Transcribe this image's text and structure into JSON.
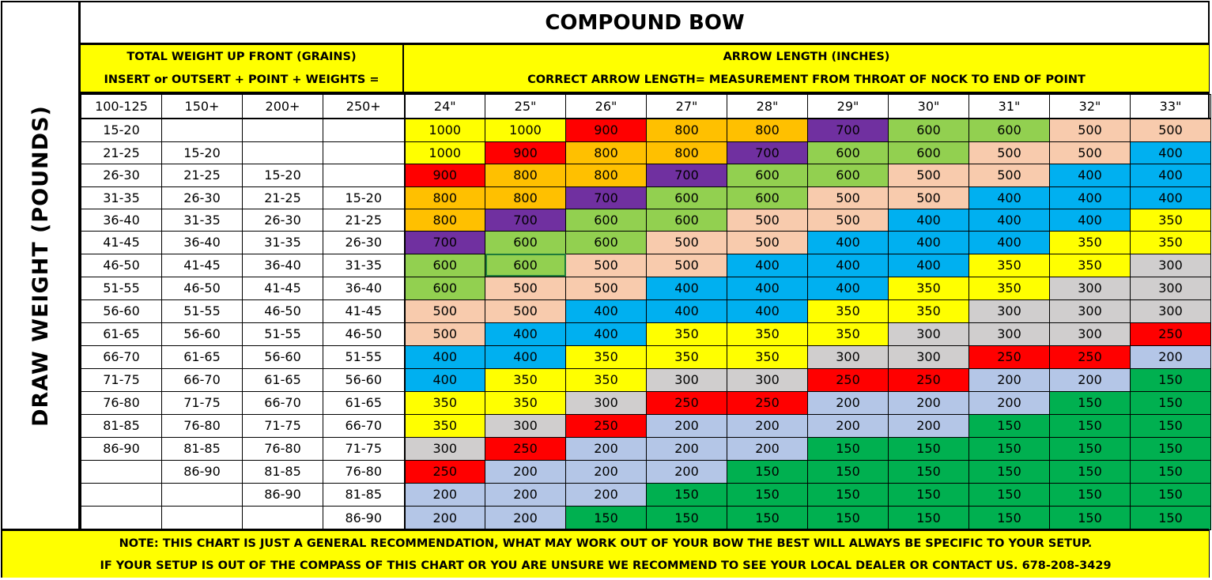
{
  "title": "COMPOUND BOW",
  "side_label": "DRAW WEIGHT (POUNDS)",
  "left_header": {
    "line1": "TOTAL WEIGHT UP FRONT (GRAINS)",
    "line2": "INSERT or OUTSERT + POINT + WEIGHTS ="
  },
  "right_header": {
    "line1": "ARROW LENGTH (INCHES)",
    "line2": "CORRECT ARROW LENGTH= MEASUREMENT FROM THROAT OF NOCK TO END OF POINT"
  },
  "weight_columns": [
    "100-125",
    "150+",
    "200+",
    "250+"
  ],
  "length_columns": [
    "24\"",
    "25\"",
    "26\"",
    "27\"",
    "28\"",
    "29\"",
    "30\"",
    "31\"",
    "32\"",
    "33\""
  ],
  "colors": {
    "1000": "#ffff00",
    "900": "#ff0000",
    "800": "#ffc000",
    "700": "#7030a0",
    "600": "#92d050",
    "500": "#f8cbad",
    "400": "#00b0f0",
    "350": "#ffff00",
    "300": "#d0cece",
    "250": "#ff0000",
    "200": "#b4c6e7",
    "150": "#00b050"
  },
  "rows": [
    {
      "weights": [
        "15-20",
        "",
        "",
        ""
      ],
      "values": [
        "1000",
        "1000",
        "900",
        "800",
        "800",
        "700",
        "600",
        "600",
        "500",
        "500"
      ]
    },
    {
      "weights": [
        "21-25",
        "15-20",
        "",
        ""
      ],
      "values": [
        "1000",
        "900",
        "800",
        "800",
        "700",
        "600",
        "600",
        "500",
        "500",
        "400"
      ]
    },
    {
      "weights": [
        "26-30",
        "21-25",
        "15-20",
        ""
      ],
      "values": [
        "900",
        "800",
        "800",
        "700",
        "600",
        "600",
        "500",
        "500",
        "400",
        "400"
      ]
    },
    {
      "weights": [
        "31-35",
        "26-30",
        "21-25",
        "15-20"
      ],
      "values": [
        "800",
        "800",
        "700",
        "600",
        "600",
        "500",
        "500",
        "400",
        "400",
        "400"
      ]
    },
    {
      "weights": [
        "36-40",
        "31-35",
        "26-30",
        "21-25"
      ],
      "values": [
        "800",
        "700",
        "600",
        "600",
        "500",
        "500",
        "400",
        "400",
        "400",
        "350"
      ]
    },
    {
      "weights": [
        "41-45",
        "36-40",
        "31-35",
        "26-30"
      ],
      "values": [
        "700",
        "600",
        "600",
        "500",
        "500",
        "400",
        "400",
        "400",
        "350",
        "350"
      ]
    },
    {
      "weights": [
        "46-50",
        "41-45",
        "36-40",
        "31-35"
      ],
      "values": [
        "600",
        "600",
        "500",
        "500",
        "400",
        "400",
        "400",
        "350",
        "350",
        "300"
      ]
    },
    {
      "weights": [
        "51-55",
        "46-50",
        "41-45",
        "36-40"
      ],
      "values": [
        "600",
        "500",
        "500",
        "400",
        "400",
        "400",
        "350",
        "350",
        "300",
        "300"
      ]
    },
    {
      "weights": [
        "56-60",
        "51-55",
        "46-50",
        "41-45"
      ],
      "values": [
        "500",
        "500",
        "400",
        "400",
        "400",
        "350",
        "350",
        "300",
        "300",
        "300"
      ]
    },
    {
      "weights": [
        "61-65",
        "56-60",
        "51-55",
        "46-50"
      ],
      "values": [
        "500",
        "400",
        "400",
        "350",
        "350",
        "350",
        "300",
        "300",
        "300",
        "250"
      ]
    },
    {
      "weights": [
        "66-70",
        "61-65",
        "56-60",
        "51-55"
      ],
      "values": [
        "400",
        "400",
        "350",
        "350",
        "350",
        "300",
        "300",
        "250",
        "250",
        "200"
      ]
    },
    {
      "weights": [
        "71-75",
        "66-70",
        "61-65",
        "56-60"
      ],
      "values": [
        "400",
        "350",
        "350",
        "300",
        "300",
        "250",
        "250",
        "200",
        "200",
        "150"
      ]
    },
    {
      "weights": [
        "76-80",
        "71-75",
        "66-70",
        "61-65"
      ],
      "values": [
        "350",
        "350",
        "300",
        "250",
        "250",
        "200",
        "200",
        "200",
        "150",
        "150"
      ]
    },
    {
      "weights": [
        "81-85",
        "76-80",
        "71-75",
        "66-70"
      ],
      "values": [
        "350",
        "300",
        "250",
        "200",
        "200",
        "200",
        "200",
        "150",
        "150",
        "150"
      ]
    },
    {
      "weights": [
        "86-90",
        "81-85",
        "76-80",
        "71-75"
      ],
      "values": [
        "300",
        "250",
        "200",
        "200",
        "200",
        "150",
        "150",
        "150",
        "150",
        "150"
      ]
    },
    {
      "weights": [
        "",
        "86-90",
        "81-85",
        "76-80"
      ],
      "values": [
        "250",
        "200",
        "200",
        "200",
        "150",
        "150",
        "150",
        "150",
        "150",
        "150"
      ]
    },
    {
      "weights": [
        "",
        "",
        "86-90",
        "81-85"
      ],
      "values": [
        "200",
        "200",
        "200",
        "150",
        "150",
        "150",
        "150",
        "150",
        "150",
        "150"
      ]
    },
    {
      "weights": [
        "",
        "",
        "",
        "86-90"
      ],
      "values": [
        "200",
        "200",
        "150",
        "150",
        "150",
        "150",
        "150",
        "150",
        "150",
        "150"
      ]
    }
  ],
  "note": {
    "line1": "NOTE: THIS CHART IS JUST A GENERAL RECOMMENDATION, WHAT MAY WORK OUT OF YOUR BOW THE BEST WILL ALWAYS BE SPECIFIC TO YOUR SETUP.",
    "line2": "IF YOUR SETUP IS OUT OF THE COMPASS OF THIS CHART OR YOU ARE UNSURE WE RECOMMEND TO SEE YOUR LOCAL DEALER OR CONTACT US.  678-208-3429"
  }
}
